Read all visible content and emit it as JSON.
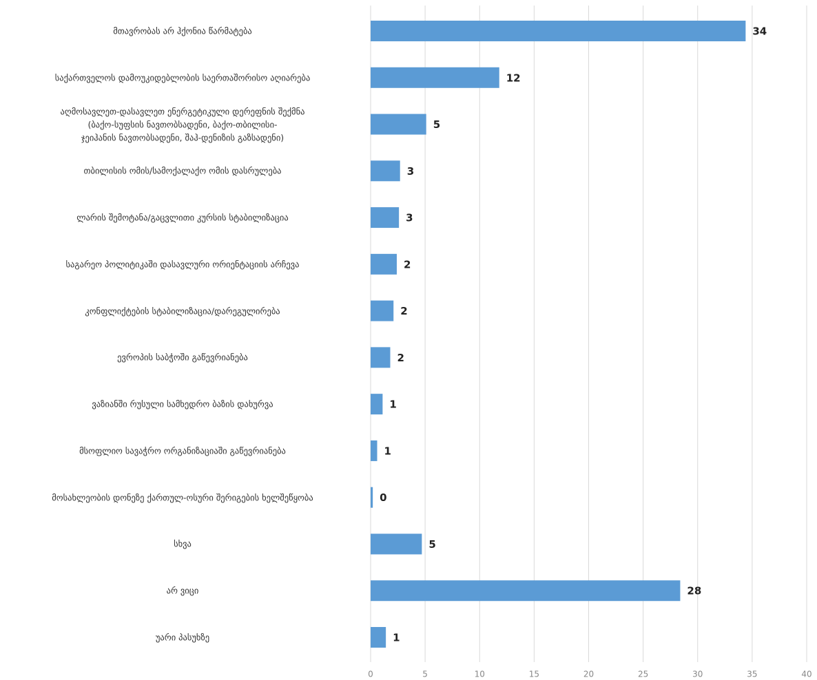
{
  "chart_data": {
    "type": "hbar",
    "categories": [
      "მთავრობას არ ჰქონია წარმატება",
      "საქართველოს დამოუკიდებლობის საერთაშორისო აღიარება",
      "აღმოსავლეთ-დასავლეთ ენერგეტიკული დერეფნის შექმნა\n(ბაქო-სუფსის ნავთობსადენი, ბაქო-თბილისი-\nჯეიჰანის ნავთობსადენი, შაჰ-დენიზის გაზსადენი)",
      "თბილისის ომის/სამოქალაქო ომის დასრულება",
      "ლარის შემოტანა/გაცვლითი კურსის სტაბილიზაცია",
      "საგარეო პოლიტიკაში დასავლური ორიენტაციის არჩევა",
      "კონფლიქტების სტაბილიზაცია/დარეგულირება",
      "ევროპის საბჭოში გაწევრიანება",
      "ვაზიანში რუსული სამხედრო ბაზის დახურვა",
      "მსოფლიო სავაჭრო ორგანიზაციაში გაწევრიანება",
      "მოსახლეობის დონეზე ქართულ-ოსური შერიგების ხელშეწყობა",
      "სხვა",
      "არ ვიცი",
      "უარი პასუხზე"
    ],
    "values": [
      34.4,
      11.8,
      5.1,
      2.7,
      2.6,
      2.4,
      2.1,
      1.8,
      1.1,
      0.6,
      0.2,
      4.7,
      28.4,
      1.4
    ],
    "value_labels": [
      "34",
      "12",
      "5",
      "3",
      "3",
      "2",
      "2",
      "2",
      "1",
      "1",
      "0",
      "5",
      "28",
      "1"
    ],
    "color": "#5b9bd5",
    "xlim": [
      0,
      40
    ],
    "xticks": [
      0,
      5,
      10,
      15,
      20,
      25,
      30,
      35,
      40
    ],
    "grid": true
  }
}
